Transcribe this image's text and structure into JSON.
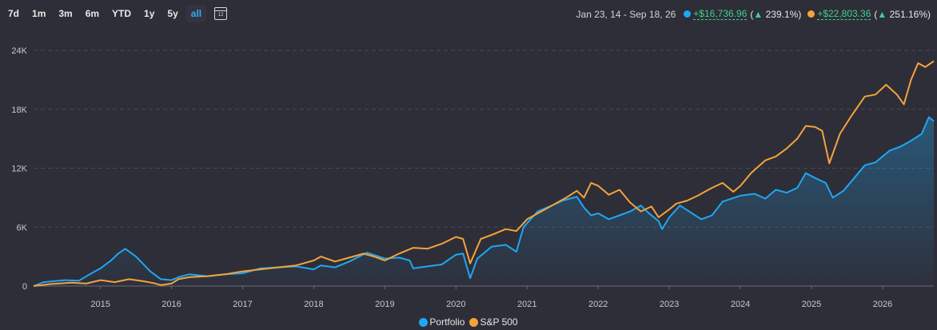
{
  "toolbar": {
    "ranges": [
      "7d",
      "1m",
      "3m",
      "6m",
      "YTD",
      "1y",
      "5y",
      "all"
    ],
    "active_range": "all"
  },
  "summary": {
    "date_range": "Jan 23, 14 - Sep 18, 26",
    "portfolio_gain": "+$16,736.96",
    "portfolio_pct": "239.1%",
    "sp500_gain": "+$22,803.36",
    "sp500_pct": "251.16%"
  },
  "colors": {
    "portfolio": "#1ea7f3",
    "sp500": "#f5a33b",
    "background": "#2e2e38",
    "gain": "#3fcf8e"
  },
  "legend": {
    "portfolio": "Portfolio",
    "sp500": "S&P 500"
  },
  "chart_data": {
    "type": "line",
    "x_ticks": [
      "2015",
      "2016",
      "2017",
      "2018",
      "2019",
      "2020",
      "2021",
      "2022",
      "2023",
      "2024",
      "2025",
      "2026"
    ],
    "y_ticks": [
      "0",
      "6K",
      "12K",
      "18K",
      "24K"
    ],
    "ylim": [
      0,
      24000
    ],
    "xlim": [
      2014.06,
      2026.72
    ],
    "grid": true,
    "legend_position": "bottom",
    "series": [
      {
        "name": "Portfolio",
        "area_fill": true,
        "points": [
          [
            2014.06,
            0
          ],
          [
            2014.2,
            400
          ],
          [
            2014.5,
            600
          ],
          [
            2014.7,
            550
          ],
          [
            2014.85,
            1200
          ],
          [
            2015.0,
            1800
          ],
          [
            2015.15,
            2600
          ],
          [
            2015.25,
            3300
          ],
          [
            2015.35,
            3800
          ],
          [
            2015.5,
            3000
          ],
          [
            2015.7,
            1500
          ],
          [
            2015.85,
            700
          ],
          [
            2016.0,
            600
          ],
          [
            2016.1,
            900
          ],
          [
            2016.25,
            1200
          ],
          [
            2016.5,
            1000
          ],
          [
            2016.75,
            1200
          ],
          [
            2017.0,
            1300
          ],
          [
            2017.25,
            1800
          ],
          [
            2017.5,
            1900
          ],
          [
            2017.75,
            2000
          ],
          [
            2018.0,
            1700
          ],
          [
            2018.1,
            2100
          ],
          [
            2018.3,
            1900
          ],
          [
            2018.5,
            2500
          ],
          [
            2018.75,
            3400
          ],
          [
            2019.0,
            2800
          ],
          [
            2019.2,
            2900
          ],
          [
            2019.35,
            2600
          ],
          [
            2019.4,
            1800
          ],
          [
            2019.6,
            2000
          ],
          [
            2019.8,
            2200
          ],
          [
            2020.0,
            3200
          ],
          [
            2020.1,
            3300
          ],
          [
            2020.2,
            800
          ],
          [
            2020.3,
            2800
          ],
          [
            2020.5,
            4000
          ],
          [
            2020.7,
            4200
          ],
          [
            2020.85,
            3500
          ],
          [
            2020.95,
            6000
          ],
          [
            2021.15,
            7600
          ],
          [
            2021.35,
            8200
          ],
          [
            2021.5,
            8700
          ],
          [
            2021.7,
            9100
          ],
          [
            2021.8,
            8000
          ],
          [
            2021.9,
            7200
          ],
          [
            2022.0,
            7400
          ],
          [
            2022.15,
            6800
          ],
          [
            2022.3,
            7200
          ],
          [
            2022.45,
            7600
          ],
          [
            2022.6,
            8200
          ],
          [
            2022.7,
            7500
          ],
          [
            2022.85,
            6600
          ],
          [
            2022.9,
            5800
          ],
          [
            2023.0,
            7000
          ],
          [
            2023.15,
            8200
          ],
          [
            2023.3,
            7500
          ],
          [
            2023.45,
            6800
          ],
          [
            2023.6,
            7200
          ],
          [
            2023.75,
            8600
          ],
          [
            2024.0,
            9200
          ],
          [
            2024.2,
            9400
          ],
          [
            2024.35,
            8900
          ],
          [
            2024.5,
            9800
          ],
          [
            2024.65,
            9500
          ],
          [
            2024.8,
            10000
          ],
          [
            2024.92,
            11500
          ],
          [
            2025.05,
            11000
          ],
          [
            2025.2,
            10500
          ],
          [
            2025.3,
            9000
          ],
          [
            2025.45,
            9700
          ],
          [
            2025.6,
            11000
          ],
          [
            2025.75,
            12300
          ],
          [
            2025.9,
            12600
          ],
          [
            2026.1,
            13800
          ],
          [
            2026.25,
            14200
          ],
          [
            2026.4,
            14800
          ],
          [
            2026.55,
            15500
          ],
          [
            2026.65,
            17200
          ],
          [
            2026.72,
            16800
          ]
        ]
      },
      {
        "name": "S&P 500",
        "area_fill": false,
        "points": [
          [
            2014.06,
            0
          ],
          [
            2014.3,
            200
          ],
          [
            2014.6,
            350
          ],
          [
            2014.8,
            250
          ],
          [
            2015.0,
            600
          ],
          [
            2015.2,
            400
          ],
          [
            2015.4,
            700
          ],
          [
            2015.6,
            500
          ],
          [
            2015.75,
            300
          ],
          [
            2015.85,
            100
          ],
          [
            2016.0,
            250
          ],
          [
            2016.1,
            700
          ],
          [
            2016.25,
            900
          ],
          [
            2016.5,
            1000
          ],
          [
            2016.75,
            1200
          ],
          [
            2017.0,
            1500
          ],
          [
            2017.25,
            1700
          ],
          [
            2017.5,
            1900
          ],
          [
            2017.75,
            2100
          ],
          [
            2018.0,
            2600
          ],
          [
            2018.1,
            3000
          ],
          [
            2018.3,
            2500
          ],
          [
            2018.5,
            2900
          ],
          [
            2018.7,
            3300
          ],
          [
            2018.85,
            3000
          ],
          [
            2019.0,
            2600
          ],
          [
            2019.2,
            3300
          ],
          [
            2019.4,
            3900
          ],
          [
            2019.6,
            3800
          ],
          [
            2019.8,
            4300
          ],
          [
            2020.0,
            5000
          ],
          [
            2020.1,
            4800
          ],
          [
            2020.2,
            2300
          ],
          [
            2020.35,
            4800
          ],
          [
            2020.5,
            5200
          ],
          [
            2020.7,
            5800
          ],
          [
            2020.85,
            5600
          ],
          [
            2021.0,
            6800
          ],
          [
            2021.2,
            7600
          ],
          [
            2021.4,
            8400
          ],
          [
            2021.55,
            9000
          ],
          [
            2021.7,
            9700
          ],
          [
            2021.8,
            9000
          ],
          [
            2021.9,
            10500
          ],
          [
            2022.0,
            10200
          ],
          [
            2022.15,
            9300
          ],
          [
            2022.3,
            9800
          ],
          [
            2022.45,
            8500
          ],
          [
            2022.6,
            7600
          ],
          [
            2022.75,
            8100
          ],
          [
            2022.85,
            7000
          ],
          [
            2023.0,
            7800
          ],
          [
            2023.1,
            8400
          ],
          [
            2023.25,
            8700
          ],
          [
            2023.4,
            9200
          ],
          [
            2023.6,
            10000
          ],
          [
            2023.75,
            10500
          ],
          [
            2023.9,
            9600
          ],
          [
            2024.0,
            10200
          ],
          [
            2024.15,
            11500
          ],
          [
            2024.35,
            12800
          ],
          [
            2024.5,
            13200
          ],
          [
            2024.65,
            14000
          ],
          [
            2024.8,
            15000
          ],
          [
            2024.92,
            16300
          ],
          [
            2025.05,
            16200
          ],
          [
            2025.15,
            15800
          ],
          [
            2025.25,
            12500
          ],
          [
            2025.4,
            15500
          ],
          [
            2025.55,
            17200
          ],
          [
            2025.75,
            19300
          ],
          [
            2025.9,
            19500
          ],
          [
            2026.05,
            20500
          ],
          [
            2026.2,
            19500
          ],
          [
            2026.3,
            18500
          ],
          [
            2026.4,
            21000
          ],
          [
            2026.5,
            22700
          ],
          [
            2026.6,
            22300
          ],
          [
            2026.72,
            22900
          ]
        ]
      }
    ]
  }
}
